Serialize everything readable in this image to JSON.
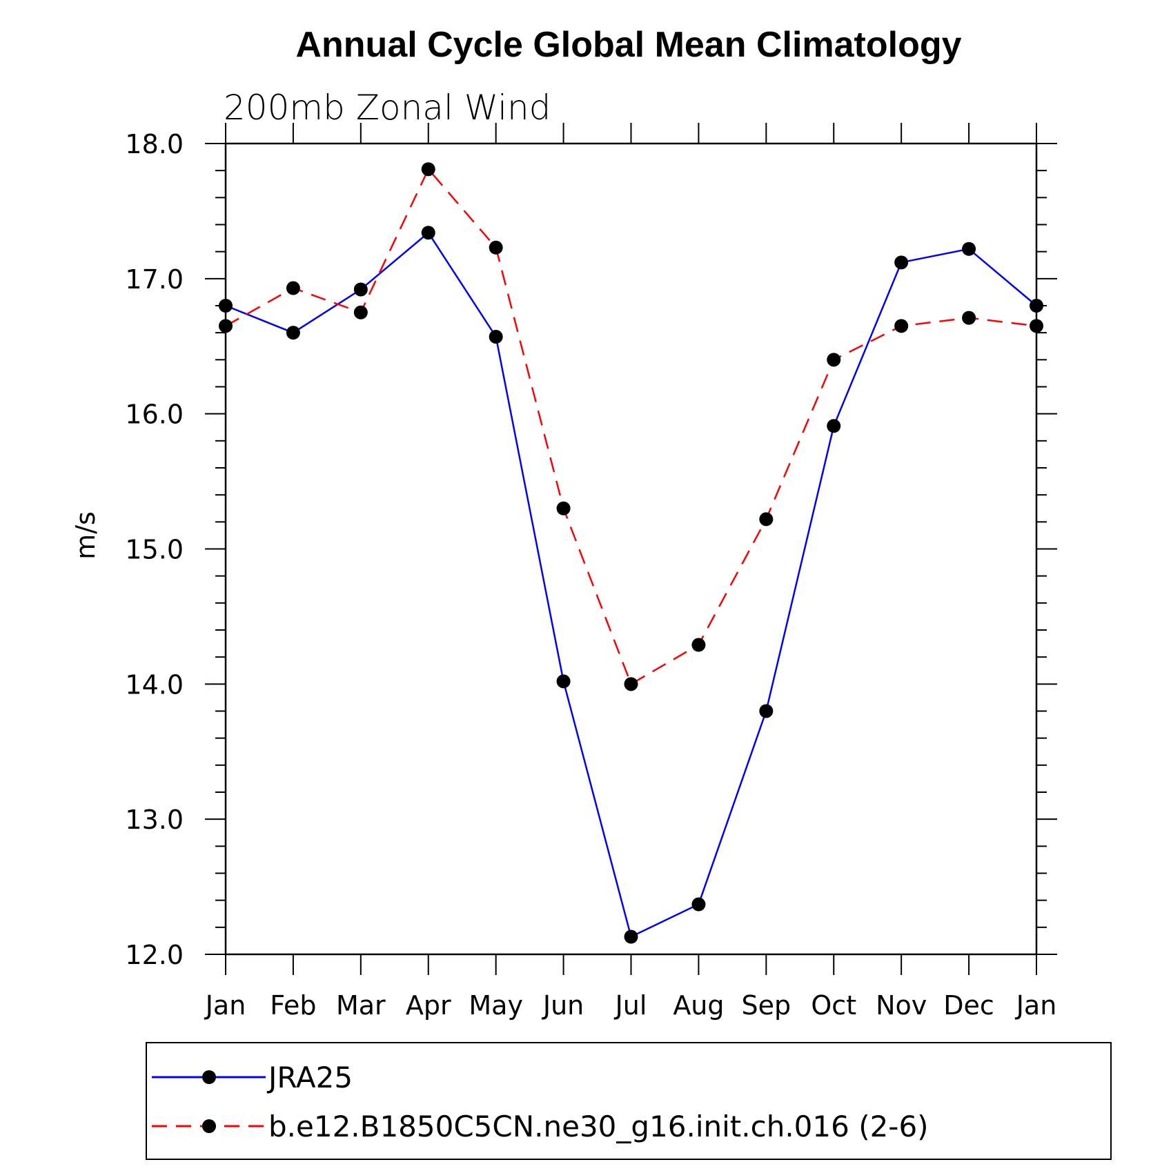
{
  "chart_data": {
    "type": "line",
    "title": "Annual Cycle Global Mean Climatology",
    "subtitle": "200mb Zonal Wind",
    "xlabel": "",
    "ylabel": "m/s",
    "categories": [
      "Jan",
      "Feb",
      "Mar",
      "Apr",
      "May",
      "Jun",
      "Jul",
      "Aug",
      "Sep",
      "Oct",
      "Nov",
      "Dec",
      "Jan"
    ],
    "ylim": [
      12.0,
      18.0
    ],
    "yticks": [
      "12.0",
      "13.0",
      "14.0",
      "15.0",
      "16.0",
      "17.0",
      "18.0"
    ],
    "grid": false,
    "legend_position": "bottom",
    "series": [
      {
        "name": "JRA25",
        "color": "#0000ff",
        "line_style": "solid",
        "marker": "filled-circle",
        "values": [
          16.8,
          16.6,
          16.92,
          17.34,
          16.57,
          14.02,
          12.13,
          12.37,
          13.8,
          15.91,
          17.12,
          17.22,
          16.8
        ]
      },
      {
        "name": "b.e12.B1850C5CN.ne30_g16.init.ch.016 (2-6)",
        "color": "#ff0000",
        "line_style": "dashed",
        "marker": "filled-circle",
        "values": [
          16.65,
          16.93,
          16.75,
          17.81,
          17.23,
          15.3,
          14.0,
          14.29,
          15.22,
          16.4,
          16.65,
          16.71,
          16.65
        ]
      }
    ]
  }
}
